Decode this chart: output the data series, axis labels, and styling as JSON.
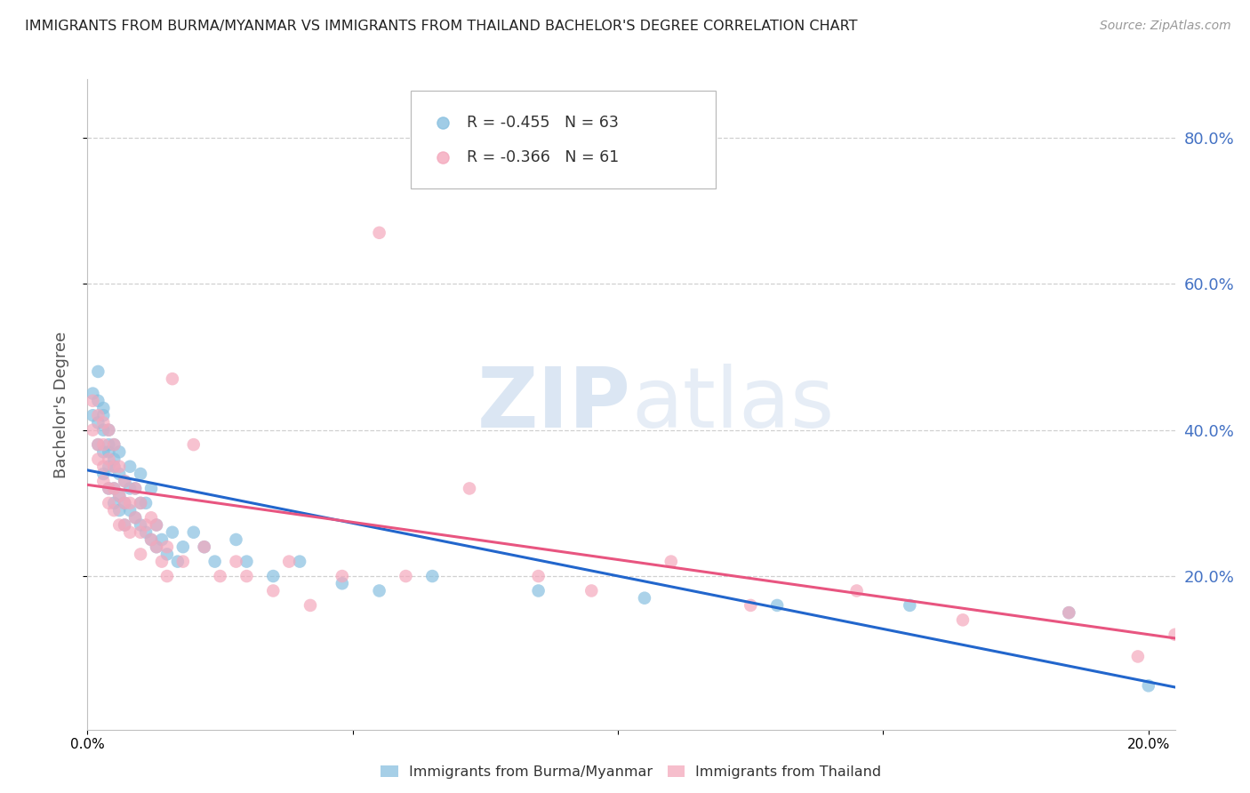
{
  "title": "IMMIGRANTS FROM BURMA/MYANMAR VS IMMIGRANTS FROM THAILAND BACHELOR'S DEGREE CORRELATION CHART",
  "source": "Source: ZipAtlas.com",
  "ylabel": "Bachelor's Degree",
  "legend_blue_label": "Immigrants from Burma/Myanmar",
  "legend_pink_label": "Immigrants from Thailand",
  "legend_blue_R": "R = -0.455",
  "legend_blue_N": "N = 63",
  "legend_pink_R": "R = -0.366",
  "legend_pink_N": "N = 61",
  "blue_color": "#88c0e0",
  "pink_color": "#f4a8bc",
  "blue_line_color": "#2266cc",
  "pink_line_color": "#e85580",
  "right_axis_color": "#4472c4",
  "watermark_zip": "ZIP",
  "watermark_atlas": "atlas",
  "xlim": [
    0.0,
    0.205
  ],
  "ylim": [
    -0.01,
    0.88
  ],
  "blue_scatter_x": [
    0.001,
    0.001,
    0.002,
    0.002,
    0.002,
    0.002,
    0.003,
    0.003,
    0.003,
    0.003,
    0.003,
    0.004,
    0.004,
    0.004,
    0.004,
    0.004,
    0.005,
    0.005,
    0.005,
    0.005,
    0.005,
    0.006,
    0.006,
    0.006,
    0.006,
    0.007,
    0.007,
    0.007,
    0.008,
    0.008,
    0.008,
    0.009,
    0.009,
    0.01,
    0.01,
    0.01,
    0.011,
    0.011,
    0.012,
    0.012,
    0.013,
    0.013,
    0.014,
    0.015,
    0.016,
    0.017,
    0.018,
    0.02,
    0.022,
    0.024,
    0.028,
    0.03,
    0.035,
    0.04,
    0.048,
    0.055,
    0.065,
    0.085,
    0.105,
    0.13,
    0.155,
    0.185,
    0.2
  ],
  "blue_scatter_y": [
    0.45,
    0.42,
    0.48,
    0.44,
    0.41,
    0.38,
    0.43,
    0.4,
    0.37,
    0.34,
    0.42,
    0.38,
    0.35,
    0.32,
    0.4,
    0.37,
    0.35,
    0.32,
    0.3,
    0.38,
    0.36,
    0.34,
    0.31,
    0.29,
    0.37,
    0.33,
    0.3,
    0.27,
    0.32,
    0.29,
    0.35,
    0.28,
    0.32,
    0.27,
    0.3,
    0.34,
    0.26,
    0.3,
    0.25,
    0.32,
    0.24,
    0.27,
    0.25,
    0.23,
    0.26,
    0.22,
    0.24,
    0.26,
    0.24,
    0.22,
    0.25,
    0.22,
    0.2,
    0.22,
    0.19,
    0.18,
    0.2,
    0.18,
    0.17,
    0.16,
    0.16,
    0.15,
    0.05
  ],
  "pink_scatter_x": [
    0.001,
    0.001,
    0.002,
    0.002,
    0.002,
    0.003,
    0.003,
    0.003,
    0.003,
    0.004,
    0.004,
    0.004,
    0.004,
    0.005,
    0.005,
    0.005,
    0.005,
    0.006,
    0.006,
    0.006,
    0.007,
    0.007,
    0.007,
    0.008,
    0.008,
    0.009,
    0.009,
    0.01,
    0.01,
    0.01,
    0.011,
    0.012,
    0.012,
    0.013,
    0.013,
    0.014,
    0.015,
    0.015,
    0.016,
    0.018,
    0.02,
    0.022,
    0.025,
    0.028,
    0.03,
    0.035,
    0.038,
    0.042,
    0.048,
    0.055,
    0.06,
    0.072,
    0.085,
    0.095,
    0.11,
    0.125,
    0.145,
    0.165,
    0.185,
    0.198,
    0.205
  ],
  "pink_scatter_y": [
    0.4,
    0.44,
    0.38,
    0.36,
    0.42,
    0.35,
    0.38,
    0.41,
    0.33,
    0.36,
    0.32,
    0.4,
    0.3,
    0.35,
    0.32,
    0.29,
    0.38,
    0.31,
    0.27,
    0.35,
    0.3,
    0.33,
    0.27,
    0.3,
    0.26,
    0.28,
    0.32,
    0.26,
    0.3,
    0.23,
    0.27,
    0.25,
    0.28,
    0.24,
    0.27,
    0.22,
    0.24,
    0.2,
    0.47,
    0.22,
    0.38,
    0.24,
    0.2,
    0.22,
    0.2,
    0.18,
    0.22,
    0.16,
    0.2,
    0.67,
    0.2,
    0.32,
    0.2,
    0.18,
    0.22,
    0.16,
    0.18,
    0.14,
    0.15,
    0.09,
    0.12
  ],
  "yticks": [
    0.2,
    0.4,
    0.6,
    0.8
  ],
  "xticks": [
    0.0,
    0.05,
    0.1,
    0.15,
    0.2
  ],
  "blue_line_x0": 0.0,
  "blue_line_x1": 0.205,
  "blue_line_y0": 0.345,
  "blue_line_y1": 0.048,
  "pink_line_x0": 0.0,
  "pink_line_x1": 0.205,
  "pink_line_y0": 0.325,
  "pink_line_y1": 0.115
}
